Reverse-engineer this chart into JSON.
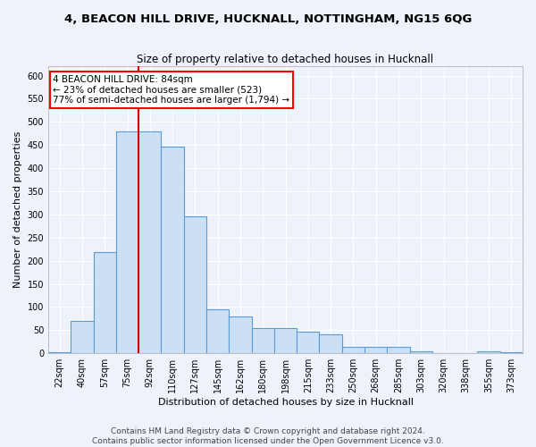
{
  "title_line1": "4, BEACON HILL DRIVE, HUCKNALL, NOTTINGHAM, NG15 6QG",
  "title_line2": "Size of property relative to detached houses in Hucknall",
  "xlabel": "Distribution of detached houses by size in Hucknall",
  "ylabel": "Number of detached properties",
  "categories": [
    "22sqm",
    "40sqm",
    "57sqm",
    "75sqm",
    "92sqm",
    "110sqm",
    "127sqm",
    "145sqm",
    "162sqm",
    "180sqm",
    "198sqm",
    "215sqm",
    "233sqm",
    "250sqm",
    "268sqm",
    "285sqm",
    "303sqm",
    "320sqm",
    "338sqm",
    "355sqm",
    "373sqm"
  ],
  "values": [
    2,
    70,
    218,
    480,
    480,
    447,
    296,
    95,
    80,
    55,
    55,
    47,
    40,
    13,
    13,
    13,
    4,
    0,
    0,
    5,
    2
  ],
  "bar_color": "#cce0f5",
  "bar_edge_color": "#5b9bd5",
  "red_line_color": "#cc0000",
  "annotation_text": "4 BEACON HILL DRIVE: 84sqm\n← 23% of detached houses are smaller (523)\n77% of semi-detached houses are larger (1,794) →",
  "annotation_box_color": "white",
  "annotation_box_edge_color": "red",
  "footer_line1": "Contains HM Land Registry data © Crown copyright and database right 2024.",
  "footer_line2": "Contains public sector information licensed under the Open Government Licence v3.0.",
  "ylim": [
    0,
    620
  ],
  "yticks": [
    0,
    50,
    100,
    150,
    200,
    250,
    300,
    350,
    400,
    450,
    500,
    550,
    600
  ],
  "bg_color": "#eef2fb",
  "grid_color": "white",
  "title_fontsize": 9.5,
  "subtitle_fontsize": 8.5,
  "axis_label_fontsize": 8,
  "tick_fontsize": 7,
  "footer_fontsize": 6.5,
  "annotation_fontsize": 7.5,
  "red_line_x": 3.5
}
